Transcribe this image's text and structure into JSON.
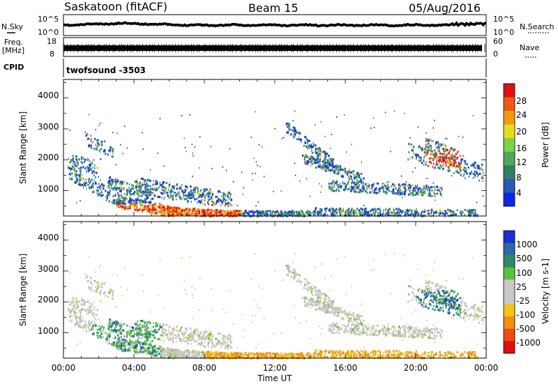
{
  "header": {
    "title": "Saskatoon (fitACF)",
    "beam": "Beam 15",
    "date": "05/Aug/2016"
  },
  "noise_panel": {
    "left_label": "N.Sky",
    "right_label": "N.Search",
    "left_ticks": [
      "10^5",
      "10^0"
    ],
    "right_ticks": [
      "10^5",
      "10^0"
    ]
  },
  "freq_panel": {
    "left_label_top": "Freq.",
    "left_label_unit": "[MHz]",
    "right_label": "Nave",
    "left_ticks": [
      "18",
      "8"
    ],
    "right_ticks": [
      "60",
      "0"
    ]
  },
  "cpid_panel": {
    "label": "CPID",
    "program": "twofsound -3503"
  },
  "chart_data": [
    {
      "type": "heatmap",
      "parameter": "Power",
      "ylabel": "Slant Range [km]",
      "ylim": [
        180,
        4600
      ],
      "yticks": [
        "1000",
        "2000",
        "3000",
        "4000"
      ],
      "xlim_hours": [
        0,
        24
      ],
      "colorbar_label": "Power [dB]",
      "colorbar_ticks": [
        "4",
        "8",
        "12",
        "16",
        "20",
        "24",
        "28"
      ],
      "colorbar_colors": [
        "#1026e6",
        "#2e57b4",
        "#2f8060",
        "#52a661",
        "#7fd14c",
        "#e7dd1f",
        "#f39a10",
        "#ec5a14",
        "#dc1313"
      ],
      "colors": {
        "blue": "#1a3fd0",
        "teal": "#3b8a7a",
        "green": "#55b04a",
        "yellow": "#e6d21d",
        "orange": "#f0861a",
        "red": "#e11a14"
      }
    },
    {
      "type": "heatmap",
      "parameter": "Velocity",
      "ylabel": "Slant Range [km]",
      "ylim": [
        180,
        4600
      ],
      "yticks": [
        "1000",
        "2000",
        "3000",
        "4000"
      ],
      "xlim_hours": [
        0,
        24
      ],
      "colorbar_label": "Velocity [m s-1]",
      "colorbar_ticks": [
        "1000",
        "500",
        "100",
        "25",
        "-25",
        "-100",
        "-500",
        "-1000"
      ],
      "colorbar_colors": [
        "#1a2fd6",
        "#2a6aa6",
        "#2f8a63",
        "#58c23a",
        "#c8c8c8",
        "#c8c8c8",
        "#f2c414",
        "#f1900f",
        "#ec4d13",
        "#dc1010"
      ],
      "colors": {
        "gray": "#c5c5c2",
        "green": "#5cbf3d",
        "teal": "#2f8a6a",
        "blue": "#1e44b8",
        "yellow": "#f0c419",
        "orange": "#ef8e17"
      }
    }
  ],
  "xaxis": {
    "ticks": [
      "00:00",
      "04:00",
      "08:00",
      "12:00",
      "16:00",
      "20:00",
      "00:00"
    ],
    "label": "Time UT"
  }
}
